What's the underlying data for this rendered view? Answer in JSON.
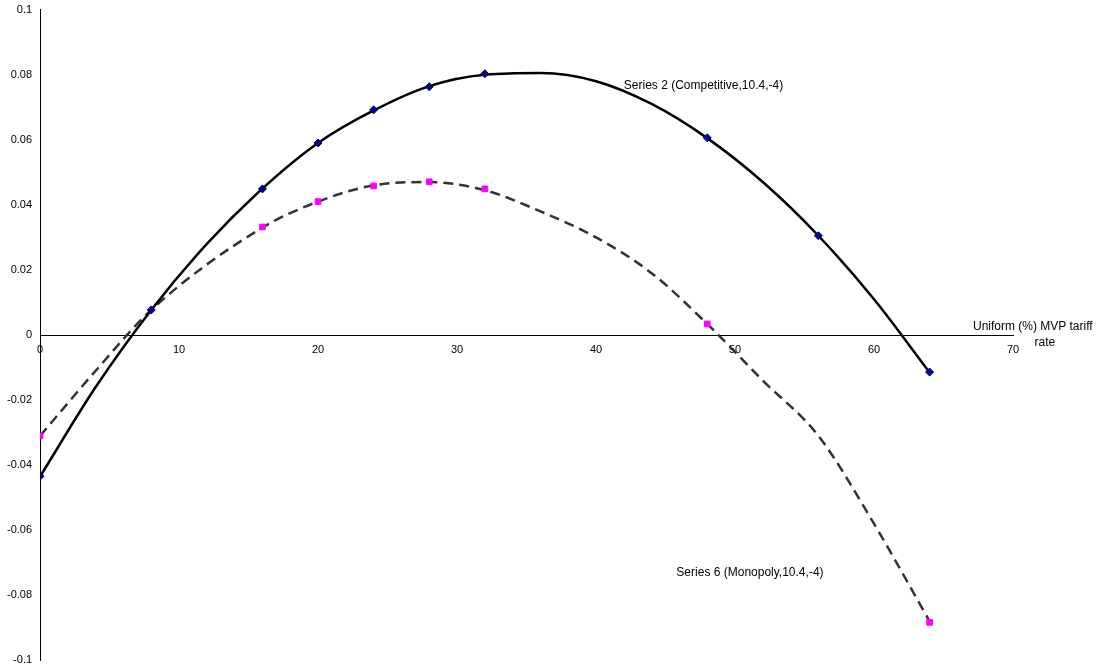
{
  "chart_data": {
    "type": "scatter",
    "xlabel": "Uniform (%) MVP tariff rate",
    "xlim": [
      0,
      70
    ],
    "xticks": [
      0,
      10,
      20,
      30,
      40,
      50,
      60,
      70
    ],
    "ylim": [
      -0.1,
      0.1
    ],
    "yticks": [
      -0.1,
      -0.08,
      -0.06,
      -0.04,
      -0.02,
      0,
      0.02,
      0.04,
      0.06,
      0.08,
      0.1
    ],
    "grid": false,
    "legend": false,
    "annotations": [
      "Series 2 (Competitive,10.4,-4)",
      "Series 6 (Monopoly,10.4,-4)"
    ],
    "series": [
      {
        "type": "line",
        "color": "#000000",
        "line_style": "solid",
        "marker": "none",
        "x": [
          0,
          4,
          8,
          12,
          16,
          20,
          24,
          28,
          32,
          36,
          40,
          44,
          48,
          52,
          56,
          60,
          64
        ],
        "values": [
          -0.0435,
          -0.016,
          0.0077,
          0.028,
          0.045,
          0.059,
          0.069,
          0.0765,
          0.08,
          0.0805,
          0.078,
          0.071,
          0.0605,
          0.047,
          0.0305,
          0.011,
          -0.0115
        ]
      },
      {
        "type": "line",
        "color": "#333333",
        "line_style": "dashed",
        "marker": "none",
        "x": [
          0,
          4,
          8,
          16,
          20,
          24,
          28,
          32,
          36,
          40,
          44,
          48,
          52,
          56,
          60,
          64
        ],
        "values": [
          -0.031,
          -0.011,
          0.0077,
          0.033,
          0.041,
          0.046,
          0.047,
          0.0445,
          0.038,
          0.03,
          0.019,
          0.0034,
          -0.014,
          -0.031,
          -0.058,
          -0.088
        ]
      },
      {
        "type": "scatter",
        "color": "#000080",
        "marker": "diamond",
        "x": [
          0,
          8,
          16,
          20,
          24,
          28,
          32,
          48,
          56,
          64
        ],
        "values": [
          -0.0434,
          0.0077,
          0.0449,
          0.059,
          0.0692,
          0.0763,
          0.0803,
          0.0606,
          0.0305,
          -0.0114
        ]
      },
      {
        "type": "scatter",
        "color": "#ff00ff",
        "marker": "square",
        "x": [
          0,
          8,
          16,
          20,
          24,
          28,
          32,
          48,
          64
        ],
        "values": [
          -0.031,
          null,
          0.0332,
          0.041,
          0.0458,
          0.0471,
          0.0449,
          0.0034,
          -0.0883
        ]
      }
    ]
  }
}
